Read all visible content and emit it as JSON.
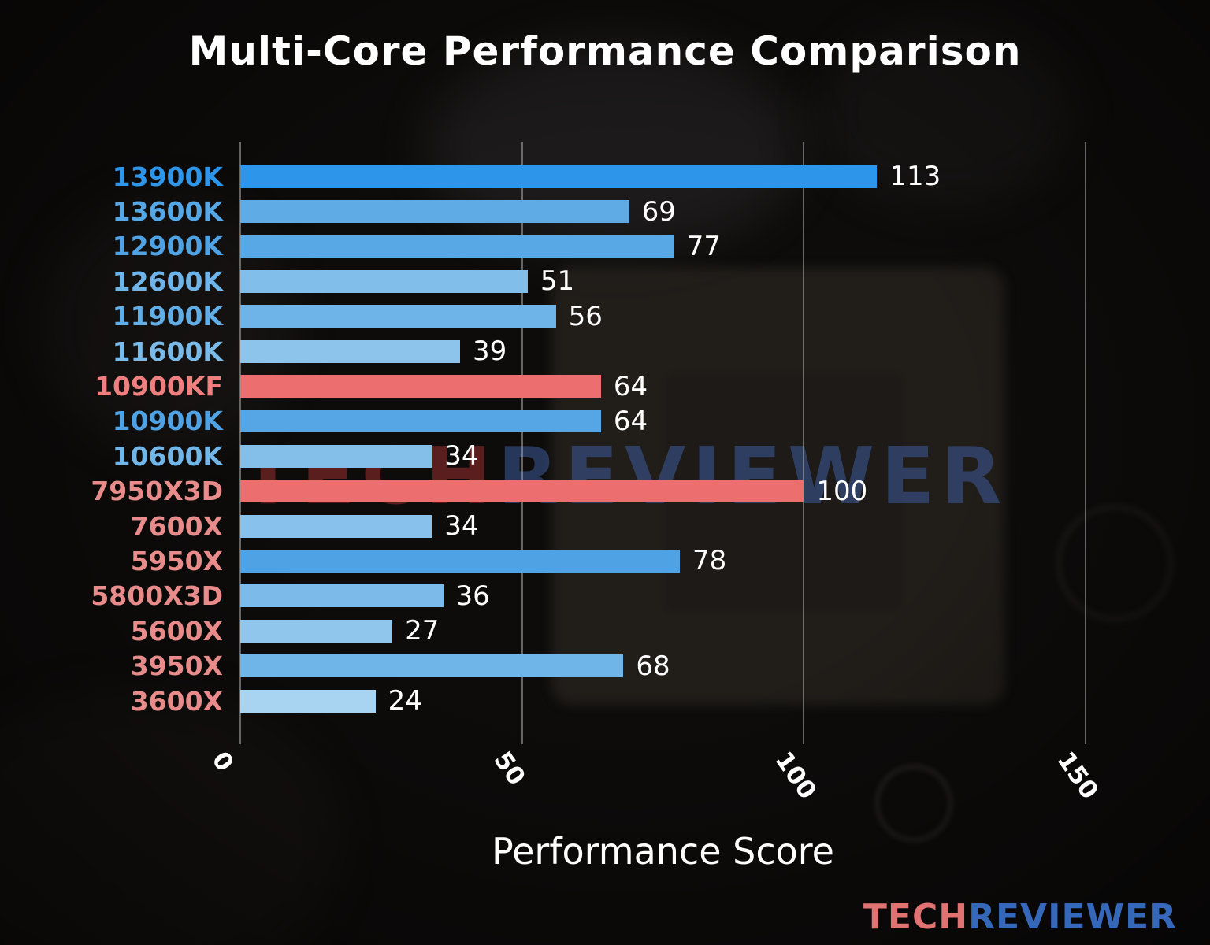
{
  "watermark": {
    "part1": "TECH",
    "part2": "REVIEWER"
  },
  "logo": {
    "part1": "TECH",
    "part2": "REVIEWER"
  },
  "chart_data": {
    "type": "bar",
    "orientation": "horizontal",
    "title": "Multi-Core Performance Comparison",
    "xlabel": "Performance Score",
    "ylabel": "",
    "xlim": [
      0,
      150
    ],
    "xticks": [
      "0",
      "50",
      "100",
      "150"
    ],
    "xtick_values": [
      0,
      50,
      100,
      150
    ],
    "grid": true,
    "legend": false,
    "categories": [
      "13900K",
      "13600K",
      "12900K",
      "12600K",
      "11900K",
      "11600K",
      "10900KF",
      "10900K",
      "10600K",
      "7950X3D",
      "7600X",
      "5950X",
      "5800X3D",
      "5600X",
      "3950X",
      "3600X"
    ],
    "values": [
      113,
      69,
      77,
      51,
      56,
      39,
      64,
      64,
      34,
      100,
      34,
      78,
      36,
      27,
      68,
      24
    ],
    "bar_colors": [
      "#2E96EA",
      "#5FABE5",
      "#58A8E6",
      "#82BEEA",
      "#6FB4E8",
      "#8CC4EC",
      "#ED6E6E",
      "#56A6E6",
      "#84BFEA",
      "#ED6E6E",
      "#88C1EB",
      "#4FA2E4",
      "#7CBBE9",
      "#90C6EC",
      "#70B5E8",
      "#A8D4F1"
    ],
    "label_colors": [
      "#2E96EA",
      "#55A7E5",
      "#4FA3E4",
      "#6FB4E8",
      "#61ADE6",
      "#79BAE9",
      "#F08080",
      "#4FA3E4",
      "#72B6E8",
      "#E88B8B",
      "#E88B8B",
      "#E88B8B",
      "#E88B8B",
      "#E88B8B",
      "#E88B8B",
      "#E88B8B"
    ],
    "value_label_color": "#ffffff",
    "highlight_color": "#ED6E6E",
    "gridline_color": "#AFAFAF",
    "text_color": "#ffffff"
  }
}
